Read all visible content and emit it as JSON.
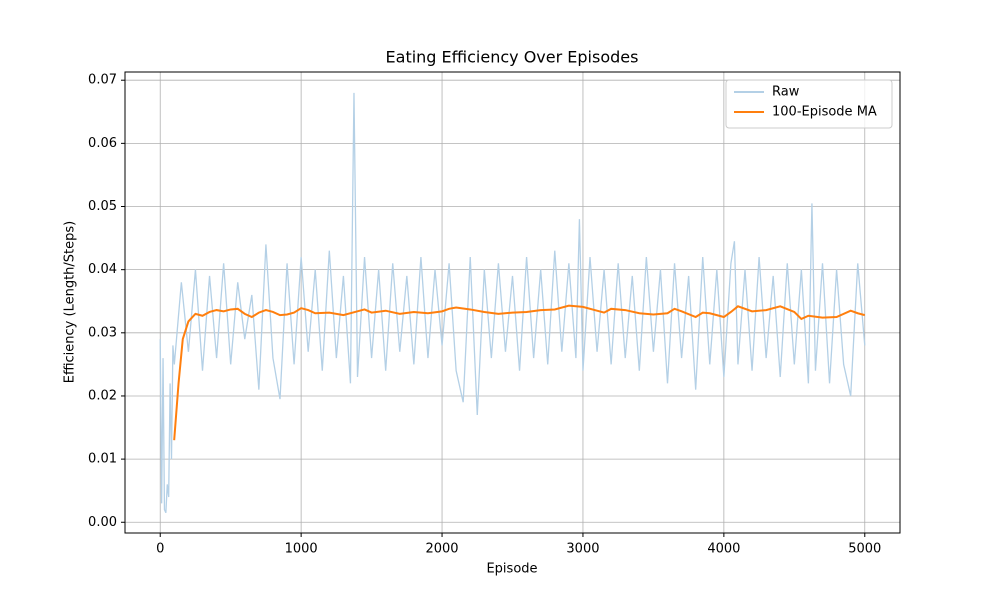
{
  "chart_data": {
    "type": "line",
    "title": "Eating Efficiency Over Episodes",
    "xlabel": "Episode",
    "ylabel": "Efficiency (Length/Steps)",
    "xlim": [
      -250,
      5250
    ],
    "ylim": [
      -0.0017,
      0.0713
    ],
    "xticks": [
      0,
      1000,
      2000,
      3000,
      4000,
      5000
    ],
    "yticks": [
      {
        "value": 0,
        "label": "0.00"
      },
      0.01,
      0.02,
      0.03,
      0.04,
      0.05,
      0.06,
      0.07
    ],
    "grid": true,
    "legend": "upper right",
    "series": [
      {
        "name": "Raw",
        "color": "#b4d0e6",
        "x": [
          0,
          10,
          20,
          30,
          40,
          50,
          60,
          70,
          80,
          90,
          100,
          150,
          200,
          250,
          300,
          350,
          400,
          450,
          500,
          550,
          600,
          650,
          700,
          750,
          800,
          850,
          900,
          950,
          1000,
          1050,
          1100,
          1150,
          1200,
          1250,
          1300,
          1350,
          1375,
          1400,
          1450,
          1500,
          1550,
          1600,
          1650,
          1700,
          1750,
          1800,
          1850,
          1900,
          1950,
          2000,
          2050,
          2100,
          2150,
          2200,
          2250,
          2300,
          2350,
          2400,
          2450,
          2500,
          2550,
          2600,
          2650,
          2700,
          2750,
          2800,
          2850,
          2900,
          2950,
          2975,
          3000,
          3050,
          3100,
          3150,
          3200,
          3250,
          3300,
          3350,
          3400,
          3450,
          3500,
          3550,
          3600,
          3650,
          3700,
          3750,
          3800,
          3850,
          3900,
          3950,
          4000,
          4050,
          4075,
          4100,
          4150,
          4200,
          4250,
          4300,
          4350,
          4400,
          4450,
          4500,
          4550,
          4600,
          4625,
          4650,
          4700,
          4750,
          4800,
          4850,
          4900,
          4950,
          5000
        ],
        "values": [
          0.029,
          0.003,
          0.026,
          0.002,
          0.0015,
          0.006,
          0.004,
          0.022,
          0.01,
          0.028,
          0.025,
          0.038,
          0.027,
          0.04,
          0.024,
          0.039,
          0.026,
          0.041,
          0.025,
          0.038,
          0.029,
          0.036,
          0.021,
          0.044,
          0.026,
          0.0195,
          0.041,
          0.025,
          0.042,
          0.027,
          0.04,
          0.024,
          0.043,
          0.026,
          0.039,
          0.022,
          0.068,
          0.023,
          0.042,
          0.026,
          0.04,
          0.024,
          0.041,
          0.027,
          0.039,
          0.025,
          0.042,
          0.026,
          0.04,
          0.028,
          0.041,
          0.024,
          0.019,
          0.042,
          0.017,
          0.04,
          0.026,
          0.041,
          0.027,
          0.039,
          0.024,
          0.042,
          0.026,
          0.04,
          0.025,
          0.043,
          0.027,
          0.041,
          0.026,
          0.048,
          0.024,
          0.042,
          0.027,
          0.04,
          0.025,
          0.041,
          0.026,
          0.039,
          0.024,
          0.042,
          0.027,
          0.04,
          0.022,
          0.041,
          0.026,
          0.039,
          0.021,
          0.042,
          0.025,
          0.04,
          0.023,
          0.041,
          0.0445,
          0.025,
          0.04,
          0.024,
          0.042,
          0.026,
          0.039,
          0.023,
          0.041,
          0.025,
          0.04,
          0.022,
          0.0505,
          0.024,
          0.041,
          0.022,
          0.04,
          0.025,
          0.02,
          0.041,
          0.028
        ]
      },
      {
        "name": "100-Episode MA",
        "color": "#ff7f0e",
        "x": [
          99,
          130,
          160,
          200,
          250,
          300,
          350,
          400,
          450,
          500,
          550,
          600,
          650,
          700,
          750,
          800,
          850,
          900,
          950,
          1000,
          1050,
          1100,
          1200,
          1300,
          1400,
          1450,
          1500,
          1600,
          1700,
          1800,
          1900,
          2000,
          2050,
          2100,
          2200,
          2300,
          2400,
          2500,
          2600,
          2700,
          2800,
          2900,
          3000,
          3100,
          3150,
          3200,
          3300,
          3400,
          3500,
          3600,
          3650,
          3700,
          3800,
          3850,
          3900,
          4000,
          4050,
          4100,
          4200,
          4300,
          4400,
          4500,
          4550,
          4600,
          4700,
          4800,
          4900,
          4950,
          5000
        ],
        "values": [
          0.013,
          0.022,
          0.029,
          0.0318,
          0.033,
          0.0327,
          0.0333,
          0.0336,
          0.0334,
          0.0337,
          0.0338,
          0.033,
          0.0325,
          0.0332,
          0.0336,
          0.0333,
          0.0328,
          0.0329,
          0.0332,
          0.0339,
          0.0336,
          0.0331,
          0.0332,
          0.0328,
          0.0334,
          0.0337,
          0.0332,
          0.0335,
          0.033,
          0.0333,
          0.0331,
          0.0334,
          0.0338,
          0.034,
          0.0337,
          0.0333,
          0.033,
          0.0332,
          0.0333,
          0.0336,
          0.0337,
          0.0343,
          0.0341,
          0.0335,
          0.0332,
          0.0338,
          0.0336,
          0.0331,
          0.0329,
          0.0331,
          0.0338,
          0.0334,
          0.0325,
          0.0332,
          0.0331,
          0.0325,
          0.0333,
          0.0342,
          0.0334,
          0.0336,
          0.0342,
          0.0333,
          0.0322,
          0.0327,
          0.0324,
          0.0325,
          0.0335,
          0.0331,
          0.0328
        ]
      }
    ]
  }
}
